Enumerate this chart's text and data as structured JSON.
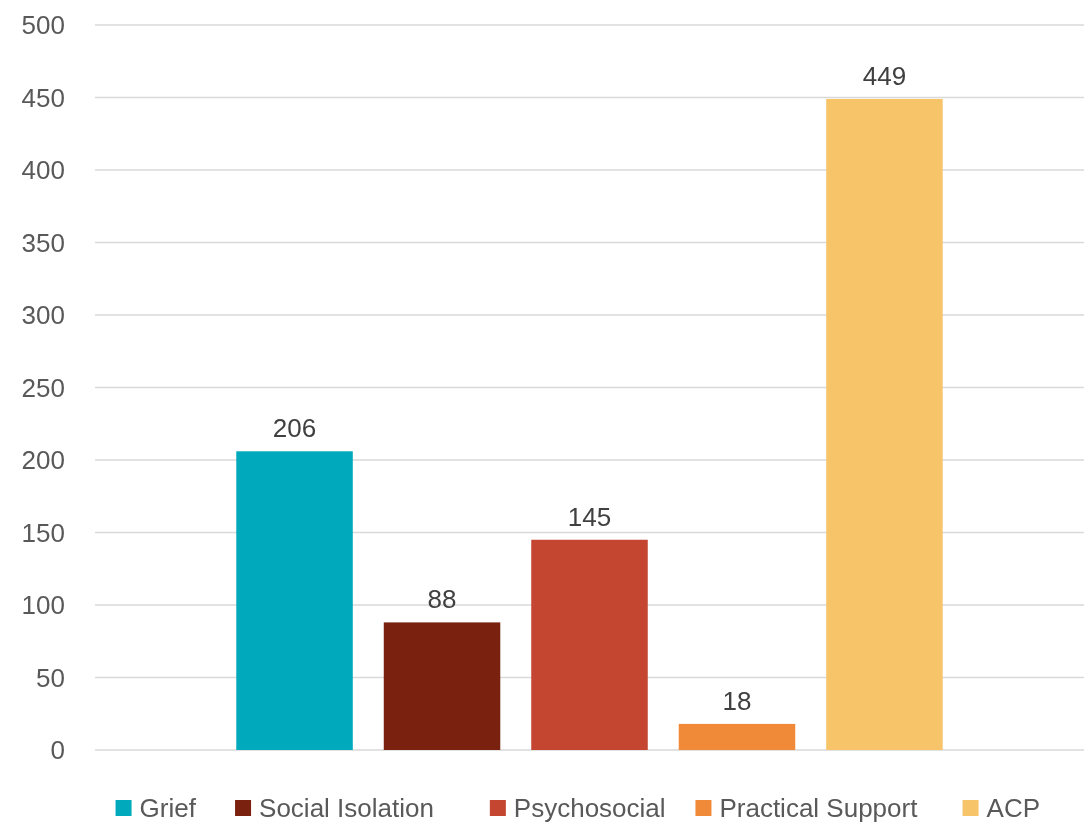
{
  "chart_data": {
    "type": "bar",
    "categories": [
      null
    ],
    "series": [
      {
        "name": "Grief",
        "color": "#00a9bb",
        "values": [
          206
        ]
      },
      {
        "name": "Social Isolation",
        "color": "#7a2110",
        "values": [
          88
        ]
      },
      {
        "name": "Psychosocial",
        "color": "#c44530",
        "values": [
          145
        ]
      },
      {
        "name": "Practical Support",
        "color": "#f08a38",
        "values": [
          18
        ]
      },
      {
        "name": "ACP",
        "color": "#f7c46a",
        "values": [
          449
        ]
      }
    ],
    "ylim": [
      0,
      500
    ],
    "yticks": [
      0,
      50,
      100,
      150,
      200,
      250,
      300,
      350,
      400,
      450,
      500
    ],
    "grid": "y",
    "data_labels": true,
    "legend": "bottom"
  }
}
